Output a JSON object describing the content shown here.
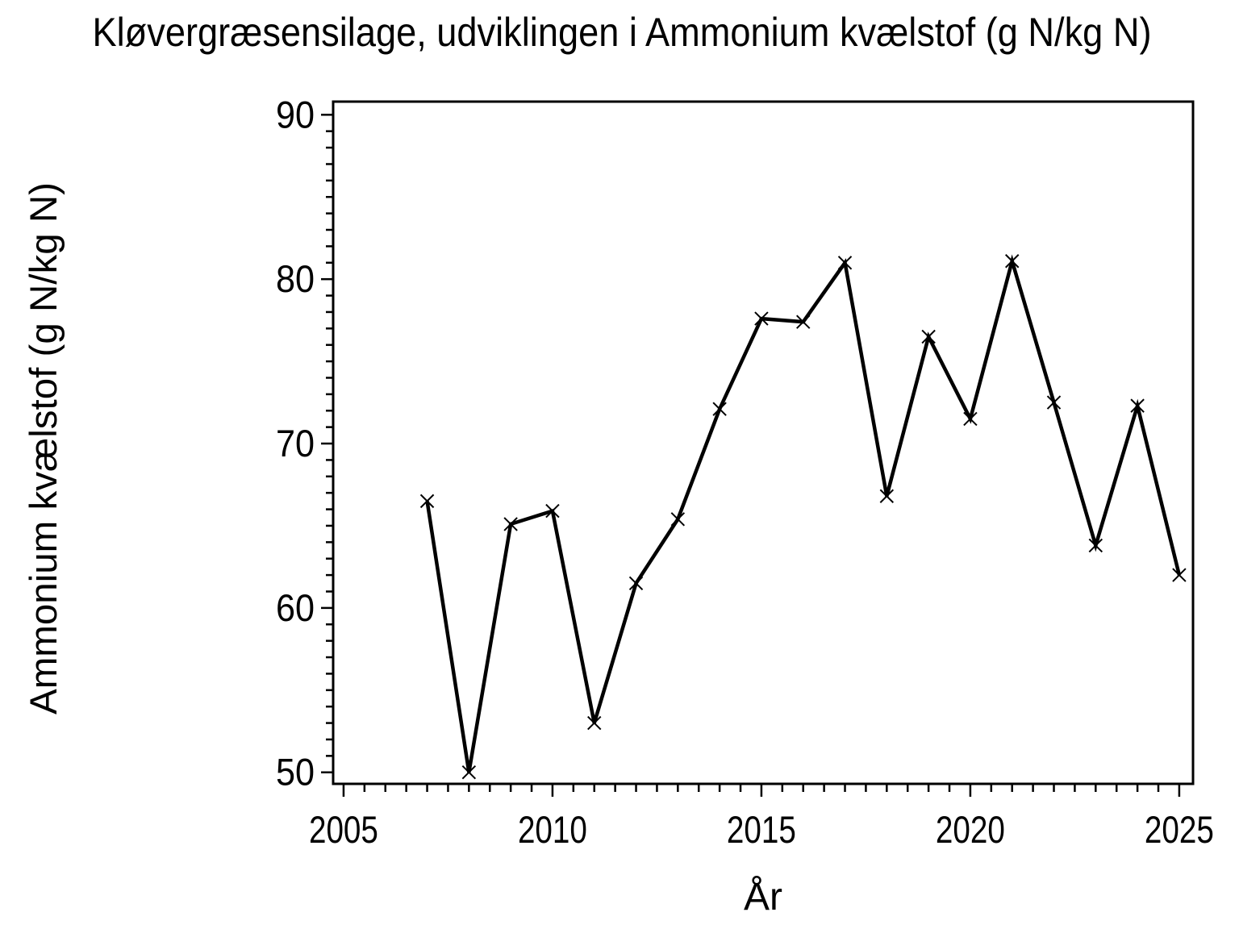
{
  "chart_data": {
    "type": "line",
    "title": "Kløvergræsensilage, udviklingen i Ammonium kvælstof (g N/kg N)",
    "xlabel": "År",
    "ylabel": "Ammonium kvælstof (g N/kg N)",
    "x": [
      2007,
      2008,
      2009,
      2010,
      2011,
      2012,
      2013,
      2014,
      2015,
      2016,
      2017,
      2018,
      2019,
      2020,
      2021,
      2022,
      2023,
      2024,
      2025
    ],
    "y": [
      66.5,
      50.0,
      65.1,
      65.9,
      53.0,
      61.5,
      65.4,
      72.1,
      77.6,
      77.4,
      81.0,
      66.8,
      76.5,
      71.5,
      81.1,
      72.5,
      63.8,
      72.3,
      62.0
    ],
    "series": [
      {
        "name": "Ammonium kvælstof (g N/kg N)",
        "values": [
          66.5,
          50.0,
          65.1,
          65.9,
          53.0,
          61.5,
          65.4,
          72.1,
          77.6,
          77.4,
          81.0,
          66.8,
          76.5,
          71.5,
          81.1,
          72.5,
          63.8,
          72.3,
          62.0
        ]
      }
    ],
    "xlim": [
      2004.75,
      2025.33
    ],
    "ylim": [
      49.3,
      90.8
    ],
    "xticks": [
      2005,
      2010,
      2015,
      2020,
      2025
    ],
    "xtick_labels": [
      "2005",
      "2010",
      "2015",
      "2020",
      "2025"
    ],
    "yticks": [
      50,
      60,
      70,
      80,
      90
    ],
    "ytick_labels": [
      "50",
      "60",
      "70",
      "80",
      "90"
    ],
    "x_minor_tick_step": 0.5,
    "y_minor_tick_step": 1,
    "grid": false,
    "legend": null,
    "marker": "x",
    "line_color": "#000000",
    "axis_color": "#000000",
    "text_color": "#000000",
    "background_color": "#ffffff"
  }
}
